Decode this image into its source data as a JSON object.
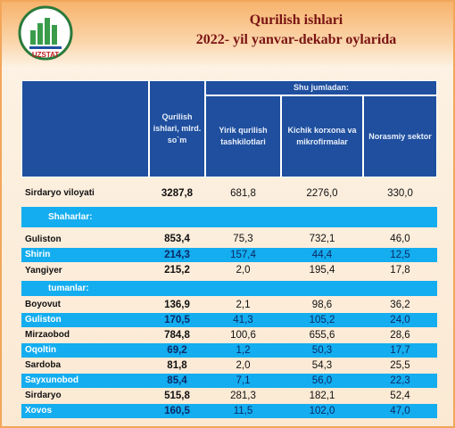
{
  "header": {
    "logo": "UZSTAT",
    "title": "Qurilish   ishlari",
    "subtitle": "2022- yil yanvar-dekabr oylarida"
  },
  "table": {
    "header": {
      "total": "Qurilish ishlari, mlrd. so`m",
      "group": "Shu jumladan:",
      "sub": [
        "Yirik qurilish tashkilotlari",
        "Kichik korxona va mikrofirmalar",
        "Norasmiy sektor"
      ]
    },
    "rows": [
      [
        "Sirdaryo viloyati",
        "3287,8",
        "681,8",
        "2276,0",
        "330,0"
      ],
      [
        "Shaharlar:"
      ],
      [
        "Guliston",
        "853,4",
        "75,3",
        "732,1",
        "46,0"
      ],
      [
        "Shirin",
        "214,3",
        "157,4",
        "44,4",
        "12,5"
      ],
      [
        "Yangiyer",
        "215,2",
        "2,0",
        "195,4",
        "17,8"
      ],
      [
        "tumanlar:"
      ],
      [
        "Boyovut",
        "136,9",
        "2,1",
        "98,6",
        "36,2"
      ],
      [
        "Guliston",
        "170,5",
        "41,3",
        "105,2",
        "24,0"
      ],
      [
        "Mirzaobod",
        "784,8",
        "100,6",
        "655,6",
        "28,6"
      ],
      [
        "Oqoltin",
        "69,2",
        "1,2",
        "50,3",
        "17,7"
      ],
      [
        "Sardoba",
        "81,8",
        "2,0",
        "54,3",
        "25,5"
      ],
      [
        "Sayxunobod",
        "85,4",
        "7,1",
        "56,0",
        "22,3"
      ],
      [
        "Sirdaryo",
        "515,8",
        "281,3",
        "182,1",
        "52,4"
      ],
      [
        "Xovos",
        "160,5",
        "11,5",
        "102,0",
        "47,0"
      ]
    ]
  }
}
